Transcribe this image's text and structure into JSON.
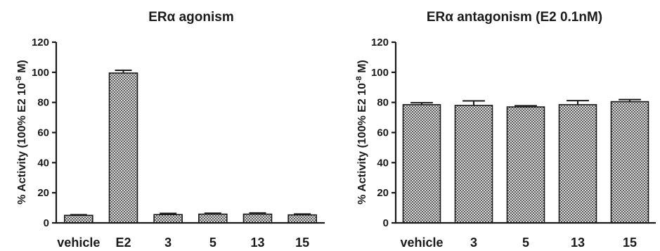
{
  "chart_data": [
    {
      "type": "bar",
      "title": "ERα agonism",
      "ylabel_prefix": "% Activity  (100%  E2 10",
      "ylabel_exp": "-8",
      "ylabel_suffix": " M)",
      "ylim": [
        0,
        120
      ],
      "yticks": [
        0,
        20,
        40,
        60,
        80,
        100,
        120
      ],
      "categories": [
        "vehicle",
        "E2",
        "3",
        "5",
        "13",
        "15"
      ],
      "values": [
        5,
        99.5,
        5.5,
        5.8,
        5.8,
        5.3
      ],
      "errors": [
        0.4,
        1.8,
        0.8,
        0.6,
        0.8,
        0.6
      ],
      "grid": false,
      "bar_fill": "checkered gray"
    },
    {
      "type": "bar",
      "title": "ERα antagonism (E2 0.1nM)",
      "ylabel_prefix": "% Activity  (100%  E2 10",
      "ylabel_exp": "-8",
      "ylabel_suffix": " M)",
      "ylim": [
        0,
        120
      ],
      "yticks": [
        0,
        20,
        40,
        60,
        80,
        100,
        120
      ],
      "categories": [
        "vehicle",
        "3",
        "5",
        "13",
        "15"
      ],
      "values": [
        78.5,
        78,
        77,
        78.5,
        80.5
      ],
      "errors": [
        1.3,
        3,
        0.8,
        2.7,
        1.4
      ],
      "grid": false,
      "bar_fill": "checkered gray"
    }
  ]
}
